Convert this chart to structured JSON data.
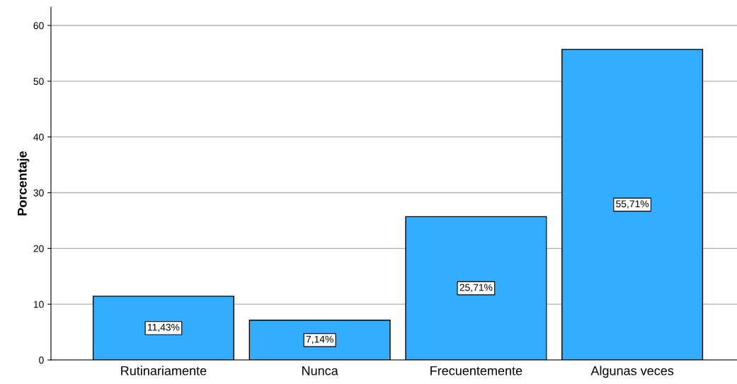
{
  "chart_data": {
    "type": "bar",
    "ylabel": "Porcentaje",
    "categories": [
      "Rutinariamente",
      "Nunca",
      "Frecuentemente",
      "Algunas veces"
    ],
    "values": [
      11.43,
      7.14,
      25.71,
      55.71
    ],
    "value_labels": [
      "11,43%",
      "7,14%",
      "25,71%",
      "55,71%"
    ],
    "color": "#33adff",
    "ylim": [
      0,
      63.3
    ],
    "yticks": [
      0,
      10,
      20,
      30,
      40,
      50,
      60
    ],
    "grid": "y",
    "legend": false
  }
}
